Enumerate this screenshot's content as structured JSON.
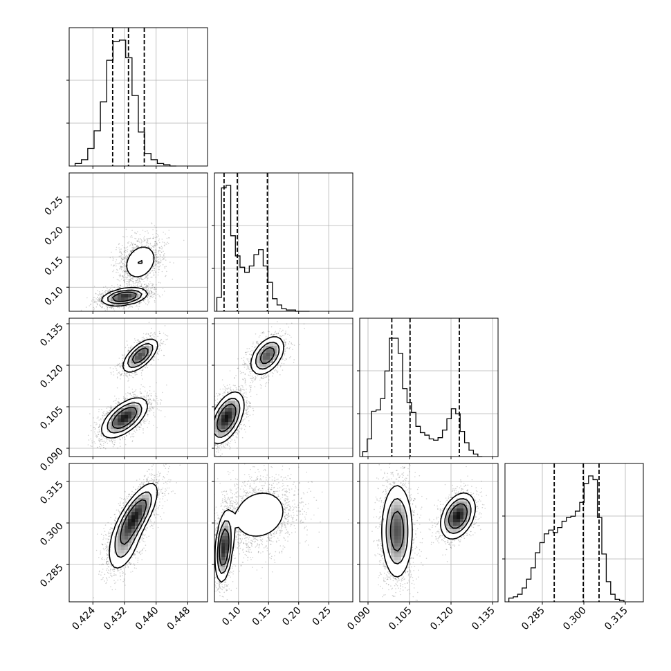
{
  "chart_data": {
    "type": "corner",
    "grid": true,
    "parameters": [
      {
        "range": [
          0.418,
          0.453
        ],
        "ticks": [
          "0.424",
          "0.432",
          "0.440",
          "0.448"
        ],
        "quantiles": [
          0.429,
          0.433,
          0.437
        ]
      },
      {
        "range": [
          0.06,
          0.29
        ],
        "ticks": [
          "0.10",
          "0.15",
          "0.20",
          "0.25"
        ],
        "quantiles": [
          0.076,
          0.098,
          0.148
        ]
      },
      {
        "range": [
          0.087,
          0.137
        ],
        "ticks": [
          "0.090",
          "0.105",
          "0.120",
          "0.135"
        ],
        "quantiles": [
          0.0986,
          0.1052,
          0.123
        ]
      },
      {
        "range": [
          0.2715,
          0.3215
        ],
        "ticks": [
          "0.285",
          "0.300",
          "0.315"
        ],
        "quantiles": [
          0.2893,
          0.2998,
          0.3055
        ]
      }
    ],
    "histograms": [
      {
        "param": 0,
        "bin_edges": [
          0.4195,
          0.4211,
          0.4227,
          0.4243,
          0.4259,
          0.4275,
          0.4291,
          0.4307,
          0.4323,
          0.4339,
          0.4355,
          0.4371,
          0.4387,
          0.4403,
          0.4419,
          0.4435,
          0.4451
        ],
        "counts": [
          0.02,
          0.05,
          0.14,
          0.28,
          0.51,
          0.84,
          0.99,
          1.0,
          0.86,
          0.56,
          0.27,
          0.1,
          0.05,
          0.02,
          0.01,
          0.0
        ]
      },
      {
        "param": 1,
        "bin_edges": [
          0.064,
          0.0717,
          0.0794,
          0.0871,
          0.0948,
          0.1025,
          0.1102,
          0.1179,
          0.1256,
          0.1333,
          0.141,
          0.1487,
          0.1564,
          0.1641,
          0.1718,
          0.1795,
          0.1872,
          0.1949,
          0.2026,
          0.2103,
          0.218
        ],
        "counts": [
          0.11,
          0.98,
          1.0,
          0.6,
          0.44,
          0.35,
          0.31,
          0.36,
          0.45,
          0.49,
          0.36,
          0.23,
          0.1,
          0.05,
          0.02,
          0.01,
          0.01,
          0.0,
          0.0,
          0.0
        ]
      },
      {
        "param": 2,
        "bin_edges": [
          0.0881,
          0.0897,
          0.0913,
          0.0929,
          0.0945,
          0.0961,
          0.0977,
          0.0993,
          0.1009,
          0.1025,
          0.1041,
          0.1057,
          0.1073,
          0.1089,
          0.1105,
          0.1121,
          0.1137,
          0.1153,
          0.1169,
          0.1185,
          0.1201,
          0.1217,
          0.1233,
          0.1249,
          0.1265,
          0.1281,
          0.1297,
          0.1313
        ],
        "counts": [
          0.04,
          0.14,
          0.36,
          0.37,
          0.46,
          0.68,
          0.94,
          0.94,
          0.82,
          0.54,
          0.43,
          0.35,
          0.24,
          0.19,
          0.17,
          0.14,
          0.13,
          0.15,
          0.21,
          0.3,
          0.38,
          0.34,
          0.2,
          0.11,
          0.05,
          0.02,
          0.0
        ]
      },
      {
        "param": 3,
        "bin_edges": [
          0.2729,
          0.2745,
          0.2761,
          0.2777,
          0.2793,
          0.2809,
          0.2825,
          0.2841,
          0.2857,
          0.2873,
          0.2889,
          0.2905,
          0.2921,
          0.2937,
          0.2953,
          0.2969,
          0.2985,
          0.3001,
          0.3017,
          0.3033,
          0.3049,
          0.3065,
          0.3081,
          0.3097,
          0.3113,
          0.3129,
          0.3145
        ],
        "counts": [
          0.03,
          0.04,
          0.06,
          0.11,
          0.18,
          0.27,
          0.39,
          0.47,
          0.54,
          0.57,
          0.55,
          0.59,
          0.64,
          0.67,
          0.68,
          0.72,
          0.79,
          0.94,
          1.0,
          0.97,
          0.67,
          0.38,
          0.16,
          0.06,
          0.02,
          0.01
        ]
      }
    ],
    "joint_modes": [
      {
        "x": 0,
        "y": 1,
        "modes": [
          {
            "cx": 0.432,
            "cy": 0.084,
            "sx": 0.0028,
            "sy": 0.007,
            "r": 0.35,
            "w": 0.58
          },
          {
            "cx": 0.436,
            "cy": 0.142,
            "sx": 0.0025,
            "sy": 0.018,
            "r": 0.25,
            "w": 0.42
          }
        ]
      },
      {
        "x": 0,
        "y": 2,
        "modes": [
          {
            "cx": 0.432,
            "cy": 0.101,
            "sx": 0.0028,
            "sy": 0.0035,
            "r": 0.6,
            "w": 0.65
          },
          {
            "cx": 0.436,
            "cy": 0.1235,
            "sx": 0.0022,
            "sy": 0.003,
            "r": 0.65,
            "w": 0.35
          }
        ]
      },
      {
        "x": 0,
        "y": 3,
        "modes": [
          {
            "cx": 0.4345,
            "cy": 0.302,
            "sx": 0.0028,
            "sy": 0.006,
            "r": 0.75,
            "w": 0.78
          },
          {
            "cx": 0.432,
            "cy": 0.291,
            "sx": 0.0022,
            "sy": 0.005,
            "r": 0.55,
            "w": 0.22
          }
        ]
      },
      {
        "x": 1,
        "y": 2,
        "modes": [
          {
            "cx": 0.08,
            "cy": 0.101,
            "sx": 0.014,
            "sy": 0.0045,
            "r": 0.5,
            "w": 0.62
          },
          {
            "cx": 0.148,
            "cy": 0.1235,
            "sx": 0.014,
            "sy": 0.0035,
            "r": 0.45,
            "w": 0.38
          }
        ]
      },
      {
        "x": 1,
        "y": 3,
        "modes": [
          {
            "cx": 0.076,
            "cy": 0.291,
            "sx": 0.007,
            "sy": 0.006,
            "r": 0.3,
            "w": 0.45
          },
          {
            "cx": 0.135,
            "cy": 0.303,
            "sx": 0.03,
            "sy": 0.006,
            "r": 0.15,
            "w": 0.55
          }
        ]
      },
      {
        "x": 2,
        "y": 3,
        "modes": [
          {
            "cx": 0.1005,
            "cy": 0.297,
            "sx": 0.0028,
            "sy": 0.0085,
            "r": 0.0,
            "w": 0.62
          },
          {
            "cx": 0.1225,
            "cy": 0.3025,
            "sx": 0.003,
            "sy": 0.004,
            "r": 0.35,
            "w": 0.38
          }
        ]
      }
    ]
  }
}
